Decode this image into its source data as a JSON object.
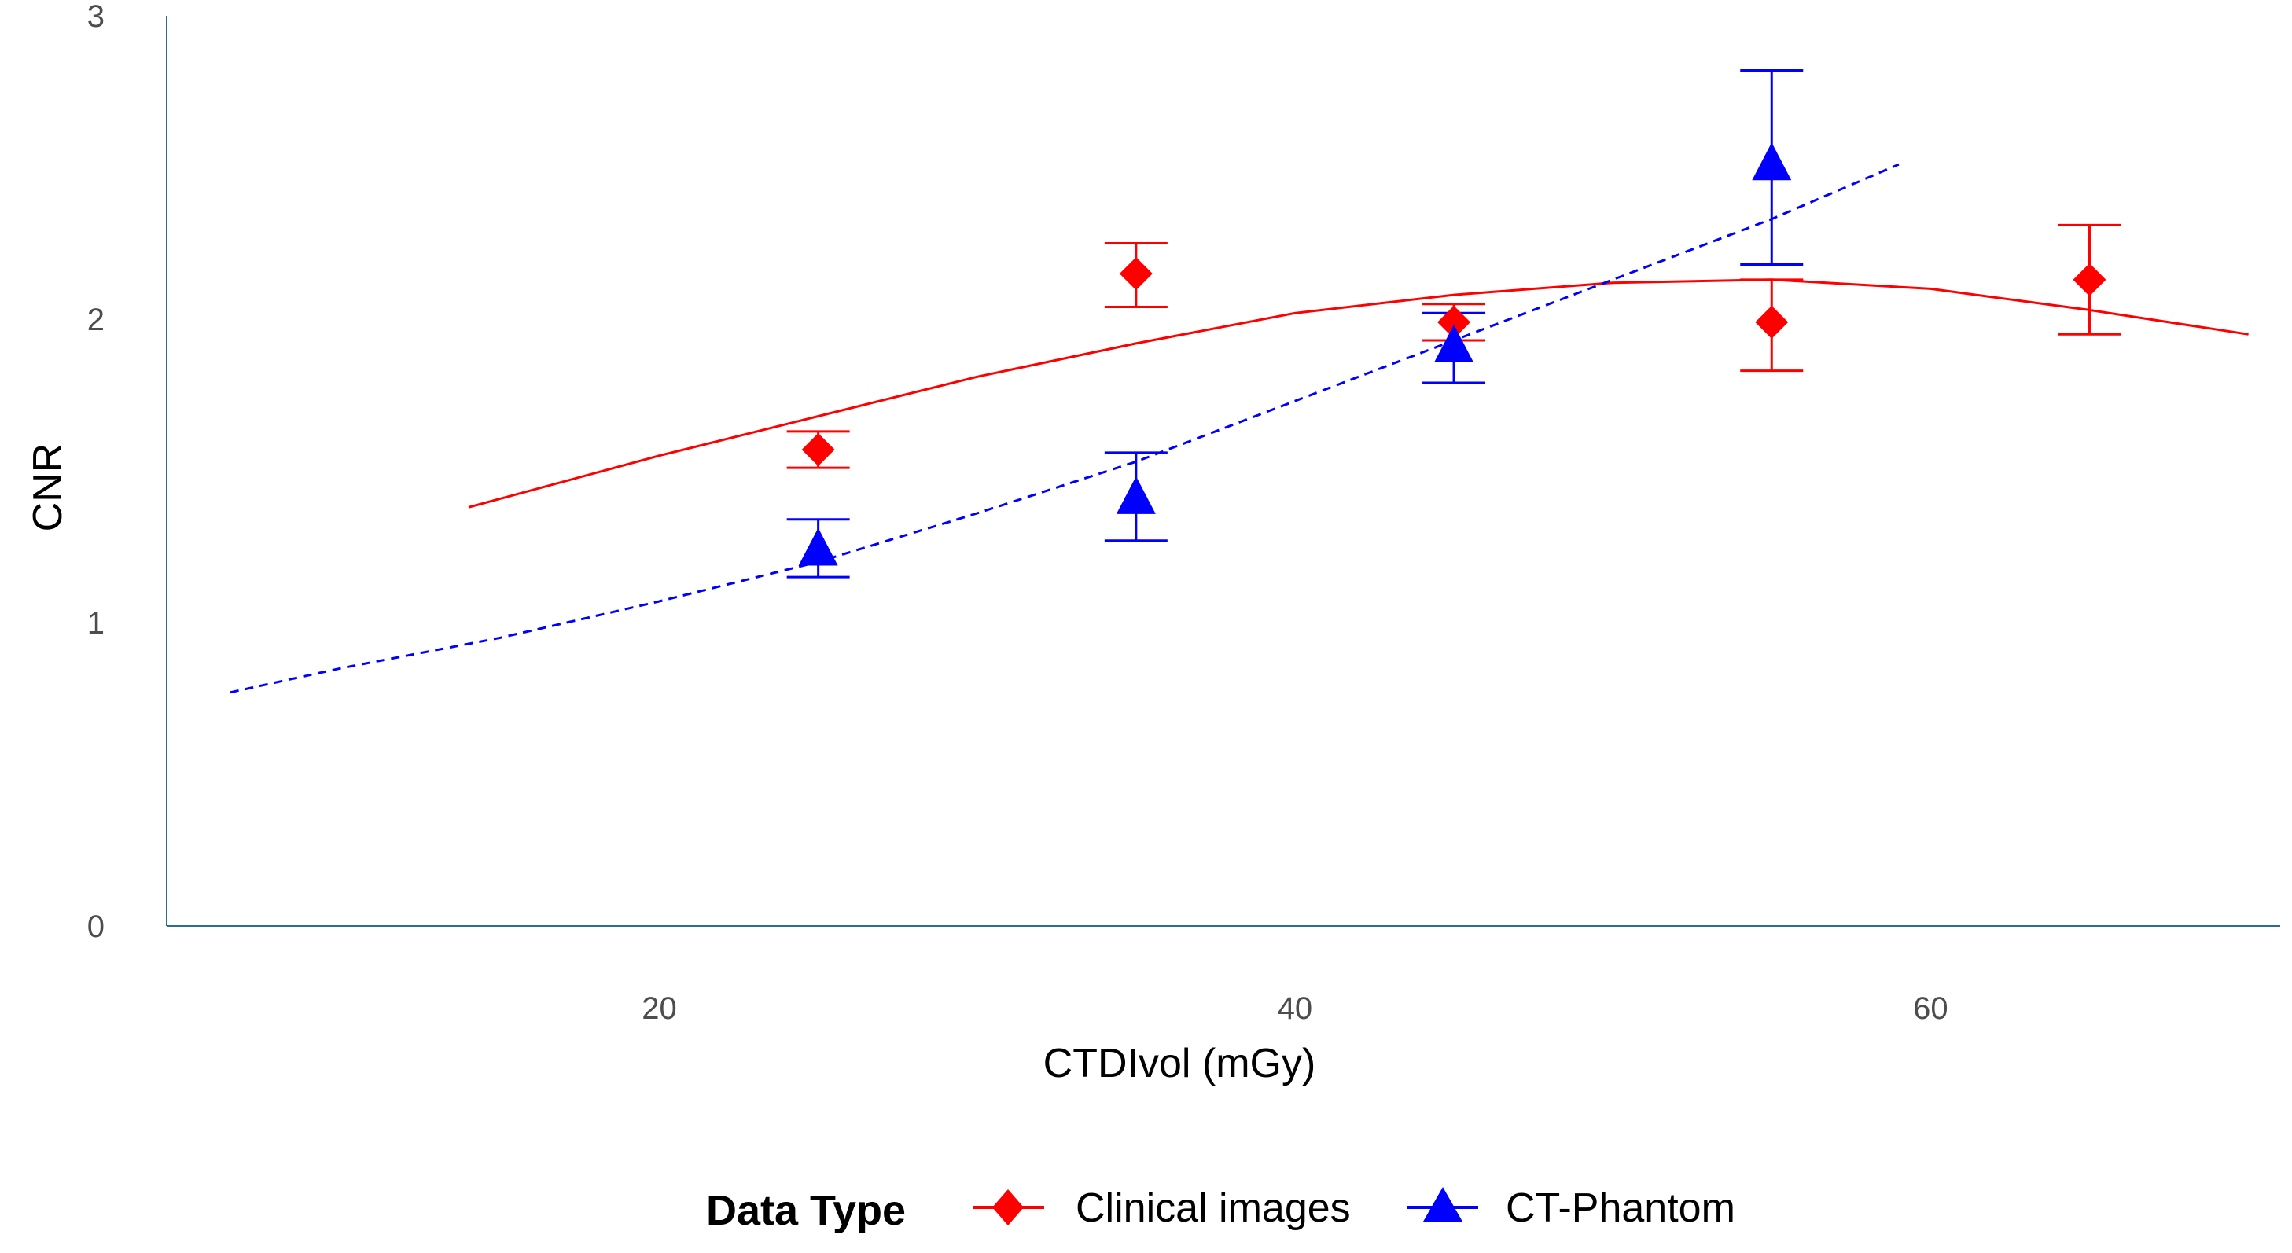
{
  "chart_data": {
    "type": "scatter",
    "title": "",
    "xlabel": "CTDIvol (mGy)",
    "ylabel": "CNR",
    "xlim": [
      4.5,
      71
    ],
    "ylim": [
      0,
      3
    ],
    "x_ticks": [
      20,
      40,
      60
    ],
    "y_ticks": [
      0,
      1,
      2,
      3
    ],
    "x_tick_labels": [
      "20",
      "40",
      "60"
    ],
    "y_tick_labels": [
      "0",
      "1",
      "2",
      "3"
    ],
    "grid": false,
    "legend": {
      "title": "Data Type",
      "position": "bottom",
      "entries": [
        "Clinical images",
        "CT-Phantom"
      ]
    },
    "series": [
      {
        "name": "Clinical images",
        "color": "#ff0000",
        "marker": "diamond",
        "points": [
          {
            "x": 25,
            "y": 1.57,
            "ymin": 1.51,
            "ymax": 1.63
          },
          {
            "x": 35,
            "y": 2.15,
            "ymin": 2.04,
            "ymax": 2.25
          },
          {
            "x": 45,
            "y": 1.99,
            "ymin": 1.93,
            "ymax": 2.05
          },
          {
            "x": 55,
            "y": 1.99,
            "ymin": 1.83,
            "ymax": 2.13
          },
          {
            "x": 65,
            "y": 2.13,
            "ymin": 1.95,
            "ymax": 2.31
          }
        ],
        "fit": {
          "style": "solid",
          "x": [
            14,
            20,
            25,
            30,
            35,
            40,
            45,
            50,
            55,
            60,
            65,
            70
          ],
          "y": [
            1.38,
            1.55,
            1.68,
            1.81,
            1.92,
            2.02,
            2.08,
            2.12,
            2.13,
            2.1,
            2.03,
            1.95
          ]
        }
      },
      {
        "name": "CT-Phantom",
        "color": "#0000ff",
        "marker": "triangle",
        "points": [
          {
            "x": 25,
            "y": 1.25,
            "ymin": 1.15,
            "ymax": 1.34
          },
          {
            "x": 35,
            "y": 1.42,
            "ymin": 1.27,
            "ymax": 1.56
          },
          {
            "x": 45,
            "y": 1.92,
            "ymin": 1.79,
            "ymax": 2.02
          },
          {
            "x": 55,
            "y": 2.52,
            "ymin": 2.18,
            "ymax": 2.82
          }
        ],
        "fit": {
          "style": "dashed",
          "x": [
            6.5,
            10,
            15,
            20,
            25,
            30,
            35,
            40,
            45,
            50,
            55,
            59
          ],
          "y": [
            0.77,
            0.85,
            0.95,
            1.07,
            1.2,
            1.36,
            1.53,
            1.73,
            1.93,
            2.13,
            2.33,
            2.51
          ]
        }
      }
    ]
  }
}
